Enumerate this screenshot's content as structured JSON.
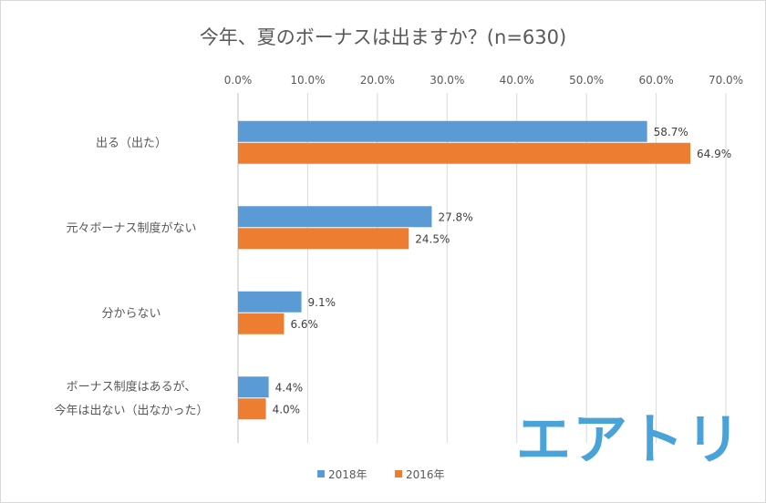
{
  "chart_data": {
    "type": "bar",
    "orientation": "horizontal",
    "title": "今年、夏のボーナスは出ますか？(n=630)",
    "categories": [
      [
        "出る（出た）"
      ],
      [
        "元々ボーナス制度がない"
      ],
      [
        "分からない"
      ],
      [
        "ボーナス制度はあるが、",
        "今年は出ない（出なかった）"
      ]
    ],
    "series": [
      {
        "name": "2018年",
        "color": "#5b9bd5",
        "values": [
          58.7,
          27.8,
          9.1,
          4.4
        ],
        "labels": [
          "58.7%",
          "27.8%",
          "9.1%",
          "4.4%"
        ]
      },
      {
        "name": "2016年",
        "color": "#ed7d31",
        "values": [
          64.9,
          24.5,
          6.6,
          4.0
        ],
        "labels": [
          "64.9%",
          "24.5%",
          "6.6%",
          "4.0%"
        ]
      }
    ],
    "xlim": [
      0,
      70
    ],
    "xticks": [
      "0.0%",
      "10.0%",
      "20.0%",
      "30.0%",
      "40.0%",
      "50.0%",
      "60.0%",
      "70.0%"
    ],
    "xaxis_position": "top",
    "grid": true,
    "legend_position": "bottom"
  },
  "logo": {
    "text": "エアトリ",
    "color": "#4aa3d8"
  }
}
